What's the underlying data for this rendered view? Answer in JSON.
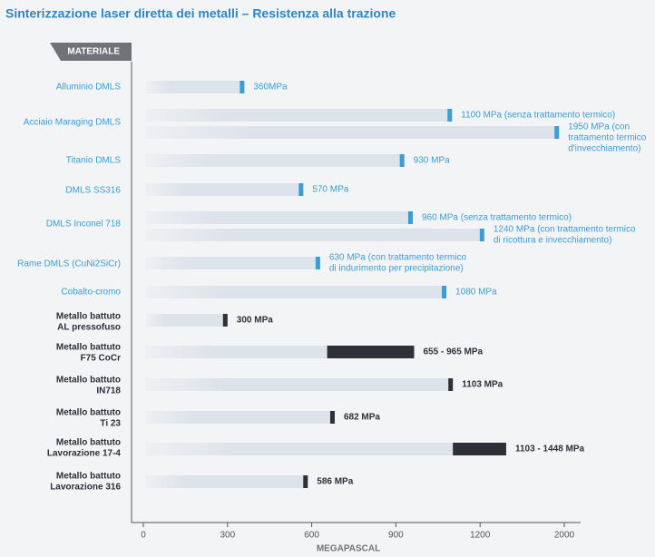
{
  "chart_data": {
    "type": "bar",
    "title": "Sinterizzazione laser diretta dei metalli – Resistenza alla trazione",
    "category_header": "MATERIALE",
    "x_label": "MEGAPASCAL",
    "xlim": [
      0,
      2000
    ],
    "xticks": [
      0,
      300,
      600,
      900,
      1200,
      2000
    ],
    "categories": [
      {
        "label": [
          "Alluminio DMLS"
        ],
        "color": "#3b9dd1",
        "bars": [
          {
            "value": 360,
            "label": [
              "360MPa"
            ]
          }
        ]
      },
      {
        "label": [
          "Acciaio Maraging DMLS"
        ],
        "color": "#3b9dd1",
        "bars": [
          {
            "value": 1100,
            "label": [
              "1100 MPa (senza trattamento termico)"
            ]
          },
          {
            "value": 1950,
            "label": [
              "1950 MPa (con",
              "trattamento termico",
              "d'invecchiamento)"
            ]
          }
        ]
      },
      {
        "label": [
          "Titanio DMLS"
        ],
        "color": "#3b9dd1",
        "bars": [
          {
            "value": 930,
            "label": [
              "930 MPa"
            ]
          }
        ]
      },
      {
        "label": [
          "DMLS SS316"
        ],
        "color": "#3b9dd1",
        "bars": [
          {
            "value": 570,
            "label": [
              "570 MPa"
            ]
          }
        ]
      },
      {
        "label": [
          "DMLS Inconel 718"
        ],
        "color": "#3b9dd1",
        "bars": [
          {
            "value": 960,
            "label": [
              "960 MPa (senza trattamento termico)"
            ]
          },
          {
            "value": 1240,
            "label": [
              "1240 MPa (con trattamento termico",
              "di ricottura e invecchiamento)"
            ]
          }
        ]
      },
      {
        "label": [
          "Rame DMLS (CuNi2SiCr)"
        ],
        "color": "#3b9dd1",
        "bars": [
          {
            "value": 630,
            "label": [
              "630 MPa (con trattamento termico",
              "di indurimento per precipitazione)"
            ]
          }
        ]
      },
      {
        "label": [
          "Cobalto-cromo"
        ],
        "color": "#3b9dd1",
        "bars": [
          {
            "value": 1080,
            "label": [
              "1080 MPa"
            ]
          }
        ]
      },
      {
        "label": [
          "Metallo battuto",
          "AL pressofuso"
        ],
        "color": "#2d3038",
        "bars": [
          {
            "value": 300,
            "label": [
              "300 MPa"
            ]
          }
        ]
      },
      {
        "label": [
          "Metallo battuto",
          "F75 CoCr"
        ],
        "color": "#2d3038",
        "bars": [
          {
            "low": 655,
            "high": 965,
            "label": [
              "655 - 965 MPa"
            ]
          }
        ]
      },
      {
        "label": [
          "Metallo battuto",
          "IN718"
        ],
        "color": "#2d3038",
        "bars": [
          {
            "value": 1103,
            "label": [
              "1103 MPa"
            ]
          }
        ]
      },
      {
        "label": [
          "Metallo battuto",
          "Ti 23"
        ],
        "color": "#2d3038",
        "bars": [
          {
            "value": 682,
            "label": [
              "682 MPa"
            ]
          }
        ]
      },
      {
        "label": [
          "Metallo battuto",
          "Lavorazione 17-4"
        ],
        "color": "#2d3038",
        "bars": [
          {
            "low": 1103,
            "high": 1448,
            "label": [
              "1103 - 1448 MPa"
            ]
          }
        ]
      },
      {
        "label": [
          "Metallo battuto",
          "Lavorazione 316"
        ],
        "color": "#2d3038",
        "bars": [
          {
            "value": 586,
            "label": [
              "586 MPa"
            ]
          }
        ]
      }
    ]
  }
}
